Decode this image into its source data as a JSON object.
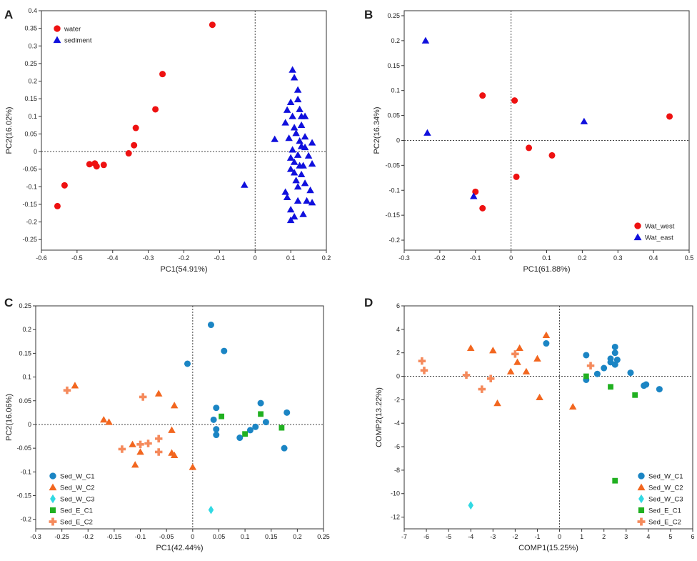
{
  "colors": {
    "red": "#ee1111",
    "blue": "#1010dd",
    "teal": "#1b85c4",
    "orange": "#f2661f",
    "cyan": "#31d9e3",
    "green": "#20b020",
    "salmon": "#f58a5c"
  },
  "chart_data": [
    {
      "panel_label": "A",
      "type": "scatter",
      "xlabel": "PC1(54.91%)",
      "ylabel": "PC2(16.02%)",
      "xlim": [
        -0.6,
        0.2
      ],
      "ylim": [
        -0.28,
        0.4
      ],
      "xticks": [
        -0.6,
        -0.5,
        -0.4,
        -0.3,
        -0.2,
        -0.1,
        0,
        0.1,
        0.2
      ],
      "xtick_labels": [
        "-0.6",
        "-0.5",
        "-0.4",
        "-0.3",
        "-0.2",
        "-0.1",
        "0",
        "0.1",
        "0.2"
      ],
      "yticks": [
        0.4,
        0.35,
        0.3,
        0.25,
        0.2,
        0.15,
        0.1,
        0.05,
        0,
        -0.05,
        -0.1,
        -0.15,
        -0.2,
        -0.25
      ],
      "ytick_labels": [
        "0.4",
        "0.35",
        "0.3",
        "0.25",
        "0.2",
        "0.15",
        "0.1",
        "0.05",
        "0",
        "-0.05",
        "-0.1",
        "-0.15",
        "-0.2",
        "-0.25"
      ],
      "legend_position": "top-left",
      "series": [
        {
          "name": "water",
          "marker": "circle",
          "color": "red",
          "points": [
            [
              -0.12,
              0.36
            ],
            [
              -0.26,
              0.22
            ],
            [
              -0.28,
              0.12
            ],
            [
              -0.335,
              0.067
            ],
            [
              -0.34,
              0.018
            ],
            [
              -0.355,
              -0.005
            ],
            [
              -0.465,
              -0.036
            ],
            [
              -0.45,
              -0.034
            ],
            [
              -0.445,
              -0.042
            ],
            [
              -0.425,
              -0.038
            ],
            [
              -0.535,
              -0.096
            ],
            [
              -0.555,
              -0.155
            ]
          ]
        },
        {
          "name": "sediment",
          "marker": "triangle",
          "color": "blue",
          "points": [
            [
              -0.03,
              -0.095
            ],
            [
              0.105,
              0.232
            ],
            [
              0.11,
              0.21
            ],
            [
              0.12,
              0.175
            ],
            [
              0.1,
              0.14
            ],
            [
              0.12,
              0.148
            ],
            [
              0.09,
              0.118
            ],
            [
              0.105,
              0.1
            ],
            [
              0.125,
              0.12
            ],
            [
              0.13,
              0.1
            ],
            [
              0.14,
              0.1
            ],
            [
              0.085,
              0.082
            ],
            [
              0.11,
              0.068
            ],
            [
              0.13,
              0.075
            ],
            [
              0.115,
              0.052
            ],
            [
              0.14,
              0.042
            ],
            [
              0.055,
              0.035
            ],
            [
              0.095,
              0.038
            ],
            [
              0.125,
              0.03
            ],
            [
              0.16,
              0.025
            ],
            [
              0.13,
              0.015
            ],
            [
              0.14,
              0.012
            ],
            [
              0.105,
              0.005
            ],
            [
              0.1,
              -0.018
            ],
            [
              0.12,
              -0.01
            ],
            [
              0.15,
              -0.012
            ],
            [
              0.11,
              -0.03
            ],
            [
              0.125,
              -0.04
            ],
            [
              0.135,
              -0.04
            ],
            [
              0.16,
              -0.035
            ],
            [
              0.1,
              -0.05
            ],
            [
              0.11,
              -0.06
            ],
            [
              0.13,
              -0.065
            ],
            [
              0.115,
              -0.082
            ],
            [
              0.14,
              -0.09
            ],
            [
              0.12,
              -0.1
            ],
            [
              0.155,
              -0.11
            ],
            [
              0.085,
              -0.115
            ],
            [
              0.09,
              -0.13
            ],
            [
              0.12,
              -0.14
            ],
            [
              0.145,
              -0.14
            ],
            [
              0.16,
              -0.145
            ],
            [
              0.1,
              -0.165
            ],
            [
              0.135,
              -0.178
            ],
            [
              0.11,
              -0.185
            ],
            [
              0.1,
              -0.195
            ]
          ]
        }
      ]
    },
    {
      "panel_label": "B",
      "type": "scatter",
      "xlabel": "PC1(61.88%)",
      "ylabel": "PC2(16.34%)",
      "xlim": [
        -0.3,
        0.5
      ],
      "ylim": [
        -0.22,
        0.26
      ],
      "xticks": [
        -0.3,
        -0.2,
        -0.1,
        0,
        0.1,
        0.2,
        0.3,
        0.4,
        0.5
      ],
      "xtick_labels": [
        "-0.3",
        "-0.2",
        "-0.1",
        "0",
        "0.1",
        "0.2",
        "0.3",
        "0.4",
        "0.5"
      ],
      "yticks": [
        0.25,
        0.2,
        0.15,
        0.1,
        0.05,
        0,
        -0.05,
        -0.1,
        -0.15,
        -0.2
      ],
      "ytick_labels": [
        "0.25",
        "0.2",
        "0.15",
        "0.1",
        "0.05",
        "0",
        "-0.05",
        "-0.1",
        "-0.15",
        "-0.2"
      ],
      "legend_position": "bottom-right",
      "series": [
        {
          "name": "Wat_west",
          "marker": "circle",
          "color": "red",
          "points": [
            [
              -0.08,
              0.09
            ],
            [
              0.01,
              0.08
            ],
            [
              0.445,
              0.048
            ],
            [
              0.05,
              -0.015
            ],
            [
              0.115,
              -0.03
            ],
            [
              0.015,
              -0.073
            ],
            [
              -0.1,
              -0.103
            ],
            [
              -0.08,
              -0.136
            ]
          ]
        },
        {
          "name": "Wat_east",
          "marker": "triangle",
          "color": "blue",
          "points": [
            [
              -0.24,
              0.2
            ],
            [
              -0.235,
              0.015
            ],
            [
              0.205,
              0.038
            ],
            [
              -0.105,
              -0.112
            ]
          ]
        }
      ]
    },
    {
      "panel_label": "C",
      "type": "scatter",
      "xlabel": "PC1(42.44%)",
      "ylabel": "PC2(16.06%)",
      "xlim": [
        -0.3,
        0.25
      ],
      "ylim": [
        -0.22,
        0.25
      ],
      "xticks": [
        -0.3,
        -0.25,
        -0.2,
        -0.15,
        -0.1,
        -0.05,
        0,
        0.05,
        0.1,
        0.15,
        0.2,
        0.25
      ],
      "xtick_labels": [
        "-0.3",
        "-0.25",
        "-0.2",
        "-0.15",
        "-0.1",
        "-0.05",
        "0",
        "0.05",
        "0.1",
        "0.15",
        "0.2",
        "0.25"
      ],
      "yticks": [
        0.25,
        0.2,
        0.15,
        0.1,
        0.05,
        0,
        -0.05,
        -0.1,
        -0.15,
        -0.2
      ],
      "ytick_labels": [
        "0.25",
        "0.2",
        "0.15",
        "0.1",
        "0.05",
        "0",
        "-0.05",
        "-0.1",
        "-0.15",
        "-0.2"
      ],
      "legend_position": "bottom-left",
      "series": [
        {
          "name": "Sed_W_C1",
          "marker": "circle",
          "color": "teal",
          "points": [
            [
              0.035,
              0.21
            ],
            [
              0.06,
              0.155
            ],
            [
              -0.01,
              0.128
            ],
            [
              0.045,
              0.035
            ],
            [
              0.04,
              0.01
            ],
            [
              0.045,
              -0.01
            ],
            [
              0.045,
              -0.022
            ],
            [
              0.09,
              -0.028
            ],
            [
              0.11,
              -0.012
            ],
            [
              0.12,
              -0.005
            ],
            [
              0.13,
              0.045
            ],
            [
              0.14,
              0.005
            ],
            [
              0.18,
              0.025
            ],
            [
              0.175,
              -0.05
            ]
          ]
        },
        {
          "name": "Sed_W_C2",
          "marker": "triangle",
          "color": "orange",
          "points": [
            [
              -0.225,
              0.082
            ],
            [
              -0.17,
              0.01
            ],
            [
              -0.16,
              0.005
            ],
            [
              -0.065,
              0.065
            ],
            [
              -0.035,
              0.04
            ],
            [
              -0.04,
              -0.012
            ],
            [
              -0.115,
              -0.042
            ],
            [
              -0.1,
              -0.058
            ],
            [
              -0.11,
              -0.085
            ],
            [
              -0.04,
              -0.06
            ],
            [
              -0.035,
              -0.065
            ],
            [
              0.0,
              -0.09
            ]
          ]
        },
        {
          "name": "Sed_W_C3",
          "marker": "diamond",
          "color": "cyan",
          "points": [
            [
              0.035,
              -0.18
            ]
          ]
        },
        {
          "name": "Sed_E_C1",
          "marker": "square",
          "color": "green",
          "points": [
            [
              0.055,
              0.017
            ],
            [
              0.1,
              -0.02
            ],
            [
              0.13,
              0.022
            ],
            [
              0.17,
              -0.007
            ]
          ]
        },
        {
          "name": "Sed_E_C2",
          "marker": "plus",
          "color": "salmon",
          "points": [
            [
              -0.24,
              0.072
            ],
            [
              -0.095,
              0.058
            ],
            [
              -0.135,
              -0.052
            ],
            [
              -0.1,
              -0.042
            ],
            [
              -0.085,
              -0.04
            ],
            [
              -0.065,
              -0.03
            ],
            [
              -0.065,
              -0.058
            ]
          ]
        }
      ]
    },
    {
      "panel_label": "D",
      "type": "scatter",
      "xlabel": "COMP1(15.25%)",
      "ylabel": "COMP2(13.22%)",
      "xlim": [
        -7,
        6
      ],
      "ylim": [
        -13,
        6
      ],
      "xticks": [
        -7,
        -6,
        -5,
        -4,
        -3,
        -2,
        -1,
        0,
        1,
        2,
        3,
        4,
        5,
        6
      ],
      "xtick_labels": [
        "-7",
        "-6",
        "-5",
        "-4",
        "-3",
        "-2",
        "-1",
        "0",
        "1",
        "2",
        "3",
        "4",
        "5",
        "6"
      ],
      "yticks": [
        6,
        4,
        2,
        0,
        -2,
        -4,
        -6,
        -8,
        -10,
        -12
      ],
      "ytick_labels": [
        "6",
        "4",
        "2",
        "0",
        "-2",
        "-4",
        "-6",
        "-8",
        "-10",
        "-12"
      ],
      "legend_position": "bottom-right",
      "series": [
        {
          "name": "Sed_W_C1",
          "marker": "circle",
          "color": "teal",
          "points": [
            [
              -0.6,
              2.8
            ],
            [
              1.2,
              1.8
            ],
            [
              2.5,
              2.5
            ],
            [
              2.5,
              2.0
            ],
            [
              2.3,
              1.5
            ],
            [
              2.6,
              1.4
            ],
            [
              2.3,
              1.2
            ],
            [
              2.5,
              1.0
            ],
            [
              2.0,
              0.7
            ],
            [
              1.7,
              0.2
            ],
            [
              1.2,
              -0.3
            ],
            [
              3.2,
              0.3
            ],
            [
              3.9,
              -0.7
            ],
            [
              3.8,
              -0.8
            ],
            [
              4.5,
              -1.1
            ]
          ]
        },
        {
          "name": "Sed_W_C2",
          "marker": "triangle",
          "color": "orange",
          "points": [
            [
              -0.6,
              3.5
            ],
            [
              -4,
              2.4
            ],
            [
              -3,
              2.2
            ],
            [
              -1.8,
              2.4
            ],
            [
              -1.9,
              1.2
            ],
            [
              -1.0,
              1.5
            ],
            [
              -2.2,
              0.4
            ],
            [
              -1.5,
              0.4
            ],
            [
              -0.9,
              -1.8
            ],
            [
              -2.8,
              -2.3
            ],
            [
              0.6,
              -2.6
            ]
          ]
        },
        {
          "name": "Sed_W_C3",
          "marker": "diamond",
          "color": "cyan",
          "points": [
            [
              -4,
              -11
            ]
          ]
        },
        {
          "name": "Sed_E_C1",
          "marker": "square",
          "color": "green",
          "points": [
            [
              1.2,
              0.0
            ],
            [
              2.3,
              -0.9
            ],
            [
              3.4,
              -1.6
            ],
            [
              2.5,
              -8.9
            ]
          ]
        },
        {
          "name": "Sed_E_C2",
          "marker": "plus",
          "color": "salmon",
          "points": [
            [
              -6.2,
              1.3
            ],
            [
              -6.1,
              0.5
            ],
            [
              -2.0,
              1.9
            ],
            [
              1.4,
              0.9
            ],
            [
              -4.2,
              0.1
            ],
            [
              -3.1,
              -0.2
            ],
            [
              -3.5,
              -1.1
            ]
          ]
        }
      ]
    }
  ]
}
